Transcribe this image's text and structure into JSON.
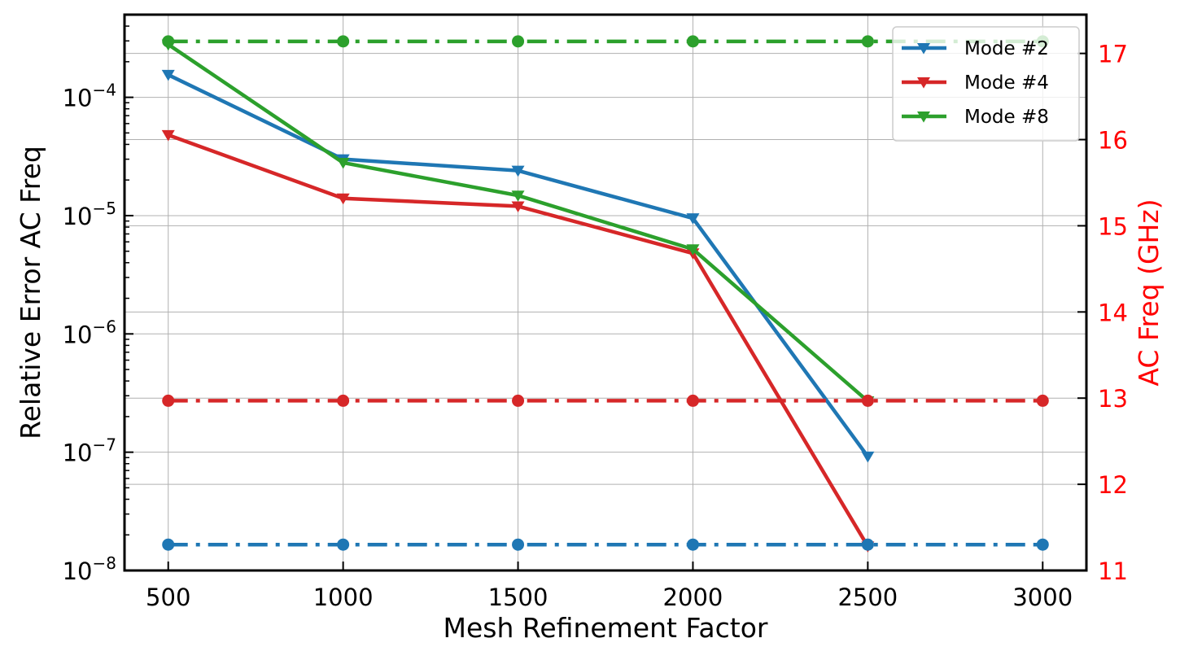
{
  "chart_data": {
    "type": "line",
    "xlabel": "Mesh Refinement Factor",
    "ylabel": "Relative Error AC Freq",
    "y2label": "AC Freq (GHz)",
    "y2_color": "#ff0000",
    "x_ticks": [
      500,
      1000,
      1500,
      2000,
      2500,
      3000
    ],
    "x_tick_labels": [
      "500",
      "1000",
      "1500",
      "2000",
      "2500",
      "3000"
    ],
    "xlim": [
      375,
      3125
    ],
    "yscale": "log",
    "ylim": [
      1e-08,
      0.0005
    ],
    "y_tick_exponents": [
      -8,
      -7,
      -6,
      -5,
      -4
    ],
    "y_tick_base": "10",
    "y2lim": [
      11,
      17.45
    ],
    "y2_ticks": [
      11,
      12,
      13,
      14,
      15,
      16,
      17
    ],
    "y2_tick_labels": [
      "11",
      "12",
      "13",
      "14",
      "15",
      "16",
      "17"
    ],
    "grid": true,
    "legend_position": "top-right",
    "series": [
      {
        "name": "Mode #2",
        "color": "#1f77b4",
        "axis": "left",
        "marker": "triangle-down",
        "x": [
          500,
          1000,
          1500,
          2000,
          2500
        ],
        "y": [
          0.000155,
          3e-05,
          2.4e-05,
          9.5e-06,
          9.2e-08
        ]
      },
      {
        "name": "Mode #4",
        "color": "#d62728",
        "axis": "left",
        "marker": "triangle-down",
        "x": [
          500,
          1000,
          1500,
          2000,
          2500
        ],
        "y": [
          4.8e-05,
          1.4e-05,
          1.2e-05,
          4.8e-06,
          1.6e-08
        ]
      },
      {
        "name": "Mode #8",
        "color": "#2ca02c",
        "axis": "left",
        "marker": "triangle-down",
        "x": [
          500,
          1000,
          1500,
          2000,
          2500
        ],
        "y": [
          0.00028,
          2.8e-05,
          1.48e-05,
          5.2e-06,
          2.7e-07
        ]
      },
      {
        "color": "#1f77b4",
        "axis": "right",
        "marker": "circle",
        "linestyle": "dashdot",
        "x": [
          500,
          1000,
          1500,
          2000,
          2500,
          3000
        ],
        "y": [
          11.3,
          11.3,
          11.3,
          11.3,
          11.3,
          11.3
        ]
      },
      {
        "color": "#d62728",
        "axis": "right",
        "marker": "circle",
        "linestyle": "dashdot",
        "x": [
          500,
          1000,
          1500,
          2000,
          2500,
          3000
        ],
        "y": [
          12.97,
          12.97,
          12.97,
          12.97,
          12.97,
          12.97
        ]
      },
      {
        "color": "#2ca02c",
        "axis": "right",
        "marker": "circle",
        "linestyle": "dashdot",
        "x": [
          500,
          1000,
          1500,
          2000,
          2500,
          3000
        ],
        "y": [
          17.14,
          17.14,
          17.14,
          17.14,
          17.14,
          17.14
        ]
      }
    ]
  }
}
